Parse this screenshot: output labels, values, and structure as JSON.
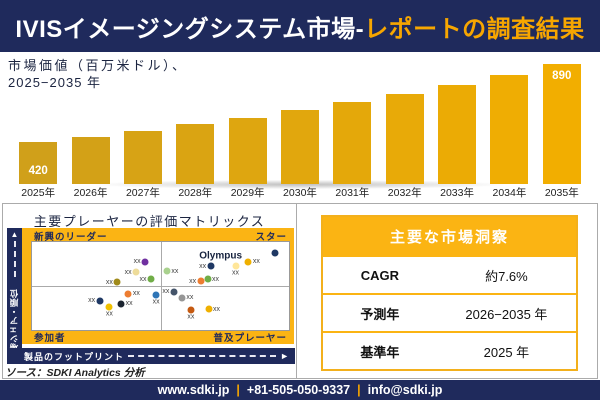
{
  "header": {
    "title_primary": "IVISイメージングシステム市場-",
    "title_accent": "レポートの調査結果"
  },
  "colors": {
    "navy": "#1F2A5C",
    "gold": "#FBB414",
    "accent_orange": "#F7A600",
    "bar_color_start": "#D0A01A",
    "bar_color_end": "#F2AE00",
    "table_border_gold": "#F3B01C"
  },
  "chart_data": [
    {
      "type": "bar",
      "title_line1": "市場価値（百万米ドル）、",
      "title_line2": "2025−2035 年",
      "unit": "百万米ドル",
      "categories": [
        "2025年",
        "2026年",
        "2027年",
        "2028年",
        "2029年",
        "2030年",
        "2031年",
        "2032年",
        "2033年",
        "2034年",
        "2035年"
      ],
      "values": [
        420,
        453,
        488,
        526,
        567,
        611,
        659,
        711,
        766,
        826,
        890
      ],
      "labeled_bars": {
        "first": "420",
        "last": "890"
      },
      "ylim": [
        420,
        890
      ]
    },
    {
      "type": "scatter",
      "title": "主要プレーヤーの評価マトリックス",
      "xlabel": "製品のフットプリント",
      "ylabel": "市場シェア・順位",
      "quadrants": {
        "top_left": "新興のリーダー",
        "top_right": "スター",
        "bottom_left": "参加者",
        "bottom_right": "普及プレーヤー"
      },
      "annotation": {
        "text": "Olympus",
        "x": 73.4,
        "y": 15.6
      },
      "points": [
        {
          "x": 44.0,
          "y": 22.2,
          "color": "#7030A0",
          "label": "xx",
          "label_pos": "left"
        },
        {
          "x": 40.5,
          "y": 34.4,
          "color": "#EEDC9A",
          "label": "xx",
          "label_pos": "left"
        },
        {
          "x": 33.2,
          "y": 45.6,
          "color": "#A08A1A",
          "label": "xx",
          "label_pos": "left"
        },
        {
          "x": 46.3,
          "y": 42.2,
          "color": "#70AD47",
          "label": "xx",
          "label_pos": "left"
        },
        {
          "x": 52.5,
          "y": 33.3,
          "color": "#A9D18E",
          "label": "xx",
          "label_pos": "right"
        },
        {
          "x": 69.5,
          "y": 27.8,
          "color": "#1F3864",
          "label": "xx",
          "label_pos": "left"
        },
        {
          "x": 65.6,
          "y": 44.4,
          "color": "#ED7D31",
          "label": "xx",
          "label_pos": "left"
        },
        {
          "x": 68.3,
          "y": 42.2,
          "color": "#70AD47",
          "label": "xx",
          "label_pos": "right"
        },
        {
          "x": 79.2,
          "y": 27.8,
          "color": "#FFE699",
          "label": "xx",
          "label_pos": "below"
        },
        {
          "x": 84.2,
          "y": 22.2,
          "color": "#EFB000",
          "label": "xx",
          "label_pos": "right"
        },
        {
          "x": 94.6,
          "y": 12.2,
          "color": "#1F3864",
          "label": "",
          "label_pos": "none"
        },
        {
          "x": 37.5,
          "y": 58.9,
          "color": "#ED7D31",
          "label": "xx",
          "label_pos": "right"
        },
        {
          "x": 48.3,
          "y": 60.0,
          "color": "#2E75B6",
          "label": "xx",
          "label_pos": "below"
        },
        {
          "x": 26.3,
          "y": 66.7,
          "color": "#1F3864",
          "label": "xx",
          "label_pos": "left"
        },
        {
          "x": 34.7,
          "y": 70.0,
          "color": "#1B2430",
          "label": "xx",
          "label_pos": "right"
        },
        {
          "x": 30.1,
          "y": 73.3,
          "color": "#F0C000",
          "label": "xx",
          "label_pos": "below"
        },
        {
          "x": 55.2,
          "y": 56.7,
          "color": "#44546A",
          "label": "xx",
          "label_pos": "left"
        },
        {
          "x": 58.3,
          "y": 63.3,
          "color": "#969696",
          "label": "xx",
          "label_pos": "right"
        },
        {
          "x": 61.8,
          "y": 77.8,
          "color": "#C55A11",
          "label": "xx",
          "label_pos": "below"
        },
        {
          "x": 68.7,
          "y": 76.7,
          "color": "#EFB000",
          "label": "xx",
          "label_pos": "right"
        }
      ]
    }
  ],
  "insights": {
    "title": "主要な市場洞察",
    "rows": [
      {
        "label": "CAGR",
        "value": "約7.6%"
      },
      {
        "label": "予測年",
        "value": "2026−2035 年"
      },
      {
        "label": "基準年",
        "value": "2025 年"
      }
    ]
  },
  "source": "ソース：SDKI Analytics 分析",
  "footer": {
    "items": [
      "www.sdki.jp",
      "+81-505-050-9337",
      "info@sdki.jp"
    ],
    "separator": "|"
  }
}
